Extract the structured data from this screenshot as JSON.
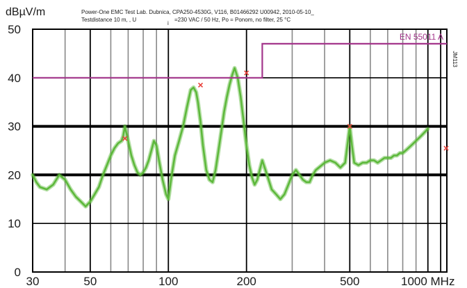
{
  "chart_data": {
    "type": "line",
    "ylabel": "dBµV/m",
    "header": {
      "line1": "Power-One EMC Test Lab. Dubnica, CPA250-4530G, V116, B01466292 U00942, 2010-05-10_",
      "line2a": "Testdistance 10 m, , U",
      "line2b": "i",
      "line2c": "=230 VAC / 50 Hz, Po = Ponom, no filter, 25 °C"
    },
    "side_label": "JM113",
    "x_scale": "log",
    "xlim": [
      30,
      1000
    ],
    "ylim": [
      0,
      50
    ],
    "x_tick_labels": [
      {
        "value": 30,
        "label": "30"
      },
      {
        "value": 50,
        "label": "50"
      },
      {
        "value": 100,
        "label": "100"
      },
      {
        "value": 200,
        "label": "200"
      },
      {
        "value": 500,
        "label": "500"
      },
      {
        "value": 1000,
        "label": "1000 MHz"
      }
    ],
    "y_ticks": [
      0,
      10,
      20,
      30,
      40,
      50
    ],
    "grid": true,
    "colors": {
      "trace": "#5cb83a",
      "limit": "#a3358b",
      "marker": "#e8413a",
      "grid_minor": "#888888",
      "grid_major": "#000000"
    },
    "limit_line": {
      "name": "EN 55011 A",
      "color": "#a3358b",
      "points": [
        [
          30,
          40
        ],
        [
          230,
          40
        ],
        [
          230,
          47
        ],
        [
          1000,
          47
        ]
      ]
    },
    "series": [
      {
        "color": "#5cb83a",
        "x": [
          30,
          31,
          32,
          34,
          36,
          38,
          40,
          42,
          44,
          46,
          48,
          50,
          52,
          54,
          56,
          58,
          60,
          62,
          64,
          66,
          67,
          68,
          70,
          72,
          74,
          76,
          78,
          80,
          82,
          84,
          86,
          88,
          90,
          92,
          95,
          98,
          100,
          103,
          106,
          110,
          114,
          118,
          122,
          125,
          128,
          130,
          133,
          136,
          140,
          144,
          148,
          152,
          156,
          160,
          164,
          168,
          172,
          176,
          180,
          185,
          190,
          195,
          200,
          205,
          210,
          215,
          220,
          225,
          230,
          240,
          250,
          260,
          270,
          280,
          290,
          300,
          310,
          320,
          330,
          340,
          350,
          360,
          370,
          380,
          390,
          400,
          420,
          440,
          460,
          480,
          500,
          505,
          510,
          520,
          540,
          560,
          580,
          600,
          620,
          640,
          660,
          680,
          700,
          720,
          740,
          760,
          780,
          800,
          820,
          840,
          860,
          880,
          900,
          920,
          940,
          960,
          980,
          1000
        ],
        "y": [
          20,
          18.5,
          17.5,
          17,
          18,
          20,
          19,
          17,
          15.5,
          14.5,
          13.5,
          14.5,
          16,
          17.5,
          20,
          22,
          24,
          25.5,
          26.5,
          27,
          28,
          30,
          27,
          24,
          22,
          20.5,
          20,
          20.5,
          21.5,
          23,
          25,
          27,
          26,
          23,
          19,
          16,
          15,
          20,
          24,
          27,
          30,
          34,
          37.5,
          38,
          37,
          35,
          31,
          26,
          21,
          19,
          18.5,
          21,
          25,
          29,
          33,
          36,
          38.5,
          40.5,
          42,
          40,
          36,
          31,
          26,
          22,
          19.5,
          18,
          19,
          21,
          23,
          20,
          17,
          16,
          15,
          16,
          18,
          20,
          21,
          20,
          19,
          18.5,
          18.5,
          20,
          21,
          21.5,
          22,
          22.5,
          23,
          22.5,
          21.5,
          22.5,
          30,
          28,
          26,
          22.5,
          22,
          22.5,
          22.5,
          23,
          23,
          22.5,
          23,
          23.5,
          23.5,
          23.5,
          24,
          24,
          24.5,
          24.5,
          25,
          25.5,
          26,
          26.5,
          27,
          27.5,
          28,
          28.5,
          29,
          29.5
        ]
      }
    ],
    "markers": [
      {
        "x": 68,
        "y": 27.5
      },
      {
        "x": 133,
        "y": 38.5
      },
      {
        "x": 200,
        "y": 41
      },
      {
        "x": 500,
        "y": 30
      },
      {
        "x": 1000,
        "y": 25.5
      }
    ]
  }
}
